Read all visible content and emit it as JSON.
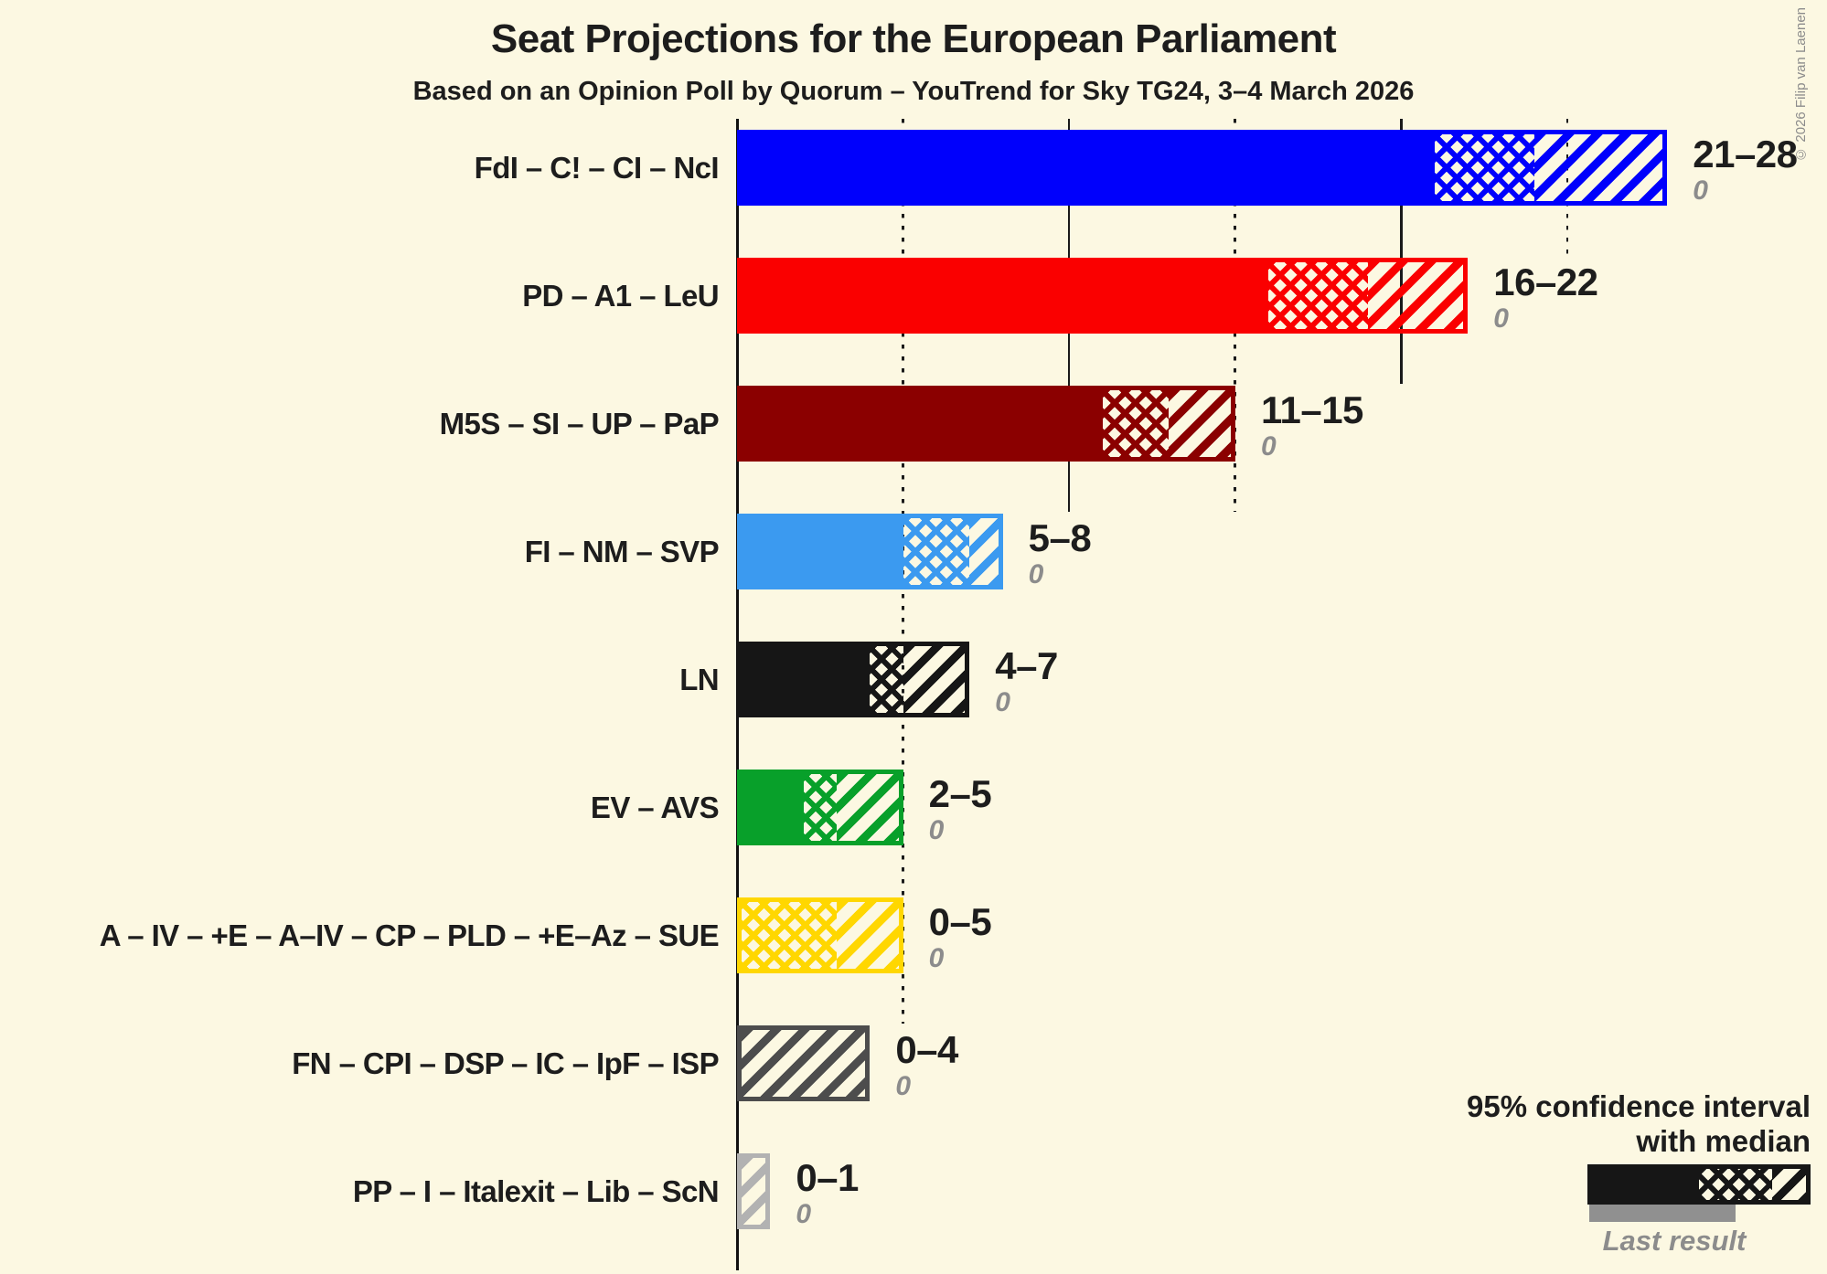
{
  "title": "Seat Projections for the European Parliament",
  "subtitle": "Based on an Opinion Poll by Quorum – YouTrend for Sky TG24, 3–4 March 2026",
  "copyright": "© 2026 Filip van Laenen",
  "legend": {
    "ci_line1": "95% confidence interval",
    "ci_line2": "with median",
    "last_result_label": "Last result"
  },
  "colors": {
    "background": "#FCF8E2",
    "text": "#1D1D1D",
    "muted": "#8C8C8C",
    "axis": "#111111",
    "gridline": "#1A1A1A",
    "last_result_bar": "#909090",
    "legend_sample": "#161616"
  },
  "chart_data": {
    "type": "bar",
    "orientation": "horizontal",
    "unit": "seats",
    "x_axis": {
      "min": 0,
      "max": 28,
      "gridline_step": 5,
      "solid_gridlines": [
        10,
        20
      ],
      "dotted_gridlines": [
        5,
        15,
        25
      ],
      "grid_on": true
    },
    "legend_position": "bottom-right",
    "series": [
      {
        "label": "FdI – C! – CI – NcI",
        "color": "#0000FC",
        "ci_low": 21,
        "median": 24,
        "ci_high": 28,
        "range_label": "21–28",
        "last_result": 0,
        "last_result_text": "0"
      },
      {
        "label": "PD – A1 – LeU",
        "color": "#FA0000",
        "ci_low": 16,
        "median": 19,
        "ci_high": 22,
        "range_label": "16–22",
        "last_result": 0,
        "last_result_text": "0"
      },
      {
        "label": "M5S – SI – UP – PaP",
        "color": "#8B0000",
        "ci_low": 11,
        "median": 13,
        "ci_high": 15,
        "range_label": "11–15",
        "last_result": 0,
        "last_result_text": "0"
      },
      {
        "label": "FI – NM – SVP",
        "color": "#3B9AF0",
        "ci_low": 5,
        "median": 7,
        "ci_high": 8,
        "range_label": "5–8",
        "last_result": 0,
        "last_result_text": "0"
      },
      {
        "label": "LN",
        "color": "#161616",
        "ci_low": 4,
        "median": 5,
        "ci_high": 7,
        "range_label": "4–7",
        "last_result": 0,
        "last_result_text": "0"
      },
      {
        "label": "EV – AVS",
        "color": "#08A02A",
        "ci_low": 2,
        "median": 3,
        "ci_high": 5,
        "range_label": "2–5",
        "last_result": 0,
        "last_result_text": "0"
      },
      {
        "label": "A – IV – +E – A–IV – CP – PLD – +E–Az – SUE",
        "color": "#FFD700",
        "ci_low": 0,
        "median": 3,
        "ci_high": 5,
        "range_label": "0–5",
        "last_result": 0,
        "last_result_text": "0"
      },
      {
        "label": "FN – CPI – DSP – IC – IpF – ISP",
        "color": "#4D4D4D",
        "ci_low": 0,
        "median": 0,
        "ci_high": 4,
        "range_label": "0–4",
        "last_result": 0,
        "last_result_text": "0"
      },
      {
        "label": "PP – I – Italexit – Lib – ScN",
        "color": "#B2B2B2",
        "ci_low": 0,
        "median": 0,
        "ci_high": 1,
        "range_label": "0–1",
        "last_result": 0,
        "last_result_text": "0"
      }
    ]
  }
}
